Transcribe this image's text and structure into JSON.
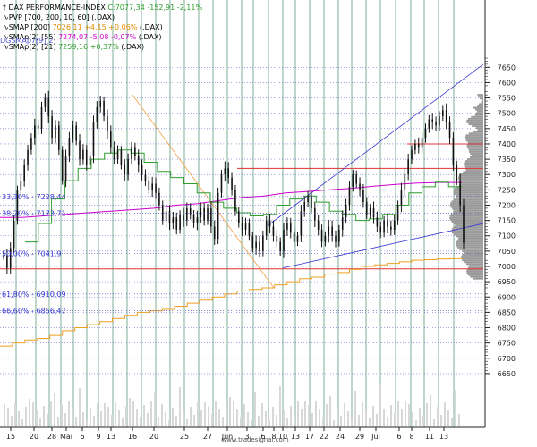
{
  "legend": [
    {
      "label": "DAX PERFORMANCE-INDEX",
      "value": "C:7077,34 -152,91 -2,11%",
      "value_color": "#2e9e2e"
    },
    {
      "label": "PVP [700, 200, 10, 60] (.DAX)",
      "value": "",
      "value_color": "#000000"
    },
    {
      "label": "SMAP [200]",
      "value": "7026,11 +4,15 +0,06%",
      "suffix": "(.DAX)",
      "value_color": "#e08a00"
    },
    {
      "label": "SMAp(2) [55]",
      "value": "7274,07 -5,08 -0,07%",
      "suffix": "(.DAX)",
      "value_color": "#d000d0"
    },
    {
      "label": "SMAp(2) [21]",
      "value": "7259,16 +0,37%",
      "suffix": "(.DAX)",
      "value_color": "#2e9e2e"
    }
  ],
  "legend_overlay": "DGSMAp7[9](2)",
  "fib_labels": [
    {
      "text": "33,30% - 7228,44",
      "price": 7228
    },
    {
      "text": "38,20% - 7173,71",
      "price": 7174
    },
    {
      "text": "50,00% - 7041,9",
      "price": 7042
    },
    {
      "text": "61,80% - 6910,09",
      "price": 6910
    },
    {
      "text": "66,60% - 6856,47",
      "price": 6856
    }
  ],
  "footer": "www.tradesignal.com",
  "chart_data": {
    "type": "candlestick",
    "title": "DAX PERFORMANCE-INDEX",
    "y_axis_side": "right",
    "y_ticks": [
      6650,
      6700,
      6750,
      6800,
      6850,
      6900,
      6950,
      7000,
      7050,
      7100,
      7150,
      7200,
      7250,
      7300,
      7350,
      7400,
      7450,
      7500,
      7550,
      7600,
      7650
    ],
    "x_ticks": [
      "15",
      "20",
      "28",
      "Mai",
      "6",
      "9",
      "13",
      "16",
      "20",
      "25",
      "27",
      "Jun",
      "3",
      "6",
      "8",
      "10",
      "13",
      "17",
      "22",
      "24",
      "29",
      "Jul",
      "6",
      "8",
      "11",
      "13"
    ],
    "close_series": [
      7035,
      6995,
      7060,
      7150,
      7250,
      7280,
      7330,
      7380,
      7420,
      7460,
      7450,
      7520,
      7550,
      7490,
      7420,
      7460,
      7380,
      7280,
      7360,
      7420,
      7460,
      7410,
      7350,
      7380,
      7330,
      7360,
      7470,
      7520,
      7540,
      7490,
      7440,
      7390,
      7350,
      7380,
      7330,
      7300,
      7350,
      7390,
      7360,
      7330,
      7300,
      7280,
      7250,
      7270,
      7240,
      7200,
      7150,
      7180,
      7140,
      7160,
      7120,
      7170,
      7150,
      7190,
      7170,
      7140,
      7160,
      7190,
      7150,
      7190,
      7130,
      7090,
      7240,
      7300,
      7320,
      7290,
      7250,
      7180,
      7140,
      7120,
      7140,
      7100,
      7060,
      7080,
      7050,
      7100,
      7150,
      7130,
      7100,
      7080,
      7050,
      7120,
      7140,
      7110,
      7080,
      7100,
      7180,
      7210,
      7230,
      7190,
      7150,
      7120,
      7080,
      7100,
      7130,
      7100,
      7080,
      7120,
      7160,
      7200,
      7260,
      7300,
      7270,
      7250,
      7210,
      7170,
      7190,
      7160,
      7130,
      7110,
      7150,
      7130,
      7120,
      7150,
      7200,
      7250,
      7300,
      7350,
      7380,
      7400,
      7390,
      7420,
      7450,
      7480,
      7470,
      7460,
      7490,
      7510,
      7470,
      7420,
      7330,
      7280,
      7200,
      7077
    ],
    "sma200": [
      6740,
      6750,
      6760,
      6765,
      6775,
      6790,
      6800,
      6810,
      6820,
      6830,
      6840,
      6850,
      6855,
      6860,
      6870,
      6880,
      6890,
      6900,
      6910,
      6920,
      6925,
      6930,
      6940,
      6950,
      6960,
      6965,
      6975,
      6980,
      6990,
      7000,
      7005,
      7010,
      7015,
      7020,
      7022,
      7024,
      7025,
      7026
    ],
    "sma55": [
      7160,
      7160,
      7165,
      7170,
      7175,
      7180,
      7185,
      7190,
      7200,
      7205,
      7215,
      7225,
      7230,
      7240,
      7245,
      7250,
      7255,
      7262,
      7268,
      7272,
      7274,
      7274
    ],
    "sma21": [
      7080,
      7140,
      7220,
      7280,
      7320,
      7350,
      7370,
      7380,
      7370,
      7340,
      7310,
      7290,
      7270,
      7240,
      7210,
      7190,
      7175,
      7165,
      7170,
      7200,
      7220,
      7230,
      7210,
      7180,
      7170,
      7150,
      7155,
      7170,
      7200,
      7240,
      7260,
      7275,
      7260,
      7259
    ],
    "horizontal_lines": [
      {
        "price": 7400,
        "color": "#e03030"
      },
      {
        "price": 7320,
        "color": "#e03030"
      },
      {
        "price": 6992,
        "color": "#e03030"
      }
    ],
    "fib_levels": [
      7228.44,
      7173.71,
      7041.9,
      6910.09,
      6856.47
    ],
    "volume_profile": {
      "price_range": [
        6960,
        7560
      ],
      "peak_price": 7170
    }
  }
}
